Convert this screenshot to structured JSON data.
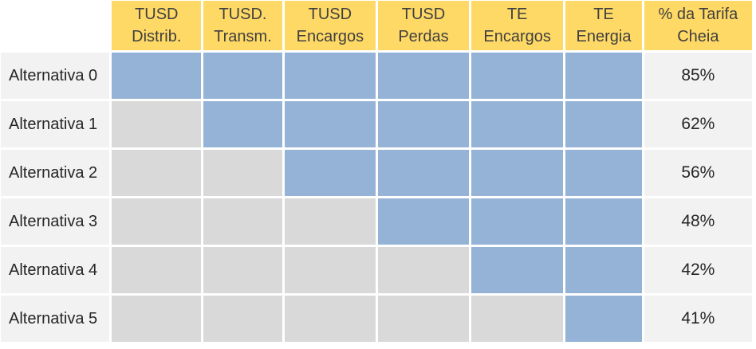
{
  "header": {
    "columns": [
      {
        "line1": "TUSD",
        "line2": "Distrib."
      },
      {
        "line1": "TUSD.",
        "line2": "Transm."
      },
      {
        "line1": "TUSD",
        "line2": "Encargos"
      },
      {
        "line1": "TUSD",
        "line2": "Perdas"
      },
      {
        "line1": "TE",
        "line2": "Encargos"
      },
      {
        "line1": "TE",
        "line2": "Energia"
      },
      {
        "line1": "% da Tarifa",
        "line2": "Cheia"
      }
    ]
  },
  "rows": [
    {
      "label": "Alternativa 0",
      "included": [
        true,
        true,
        true,
        true,
        true,
        true
      ],
      "pct": "85%"
    },
    {
      "label": "Alternativa 1",
      "included": [
        false,
        true,
        true,
        true,
        true,
        true
      ],
      "pct": "62%"
    },
    {
      "label": "Alternativa 2",
      "included": [
        false,
        false,
        true,
        true,
        true,
        true
      ],
      "pct": "56%"
    },
    {
      "label": "Alternativa 3",
      "included": [
        false,
        false,
        false,
        true,
        true,
        true
      ],
      "pct": "48%"
    },
    {
      "label": "Alternativa 4",
      "included": [
        false,
        false,
        false,
        false,
        true,
        true
      ],
      "pct": "42%"
    },
    {
      "label": "Alternativa 5",
      "included": [
        false,
        false,
        false,
        false,
        false,
        true
      ],
      "pct": "41%"
    }
  ],
  "colors": {
    "header": "#ffd966",
    "included": "#95b3d7",
    "excluded": "#d9d9d9",
    "label_bg": "#f2f2f2"
  }
}
